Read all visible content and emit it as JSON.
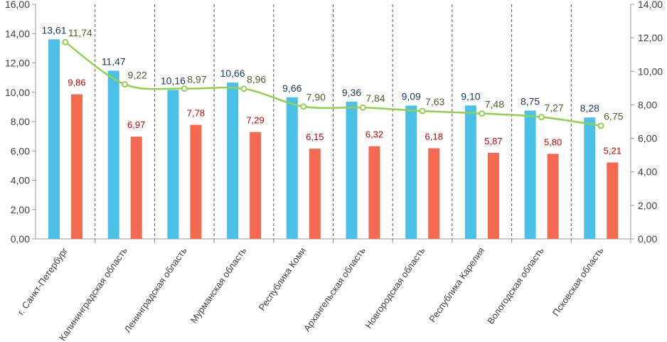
{
  "chart_data": {
    "type": "bar",
    "categories": [
      "г. Санкт-Петербург",
      "Калининградская область",
      "Ленинградская область",
      "Мурманская область",
      "Республика Коми",
      "Архангельская область",
      "Новгородская область",
      "Республика Карелия",
      "Вологодская область",
      "Псковская область"
    ],
    "series": [
      {
        "type": "bar",
        "axis": "left",
        "color": "#4BC0E8",
        "label_color": "#1F3864",
        "values": [
          13.61,
          11.47,
          10.16,
          10.66,
          9.66,
          9.36,
          9.09,
          9.1,
          8.75,
          8.28
        ],
        "labels": [
          "13,61",
          "11,47",
          "10,16",
          "10,66",
          "9,66",
          "9,36",
          "9,09",
          "9,10",
          "8,75",
          "8,28"
        ]
      },
      {
        "type": "bar",
        "axis": "left",
        "color": "#F46A50",
        "label_color": "#C00000",
        "values": [
          9.86,
          6.97,
          7.78,
          7.29,
          6.15,
          6.32,
          6.18,
          5.87,
          5.8,
          5.21
        ],
        "labels": [
          "9,86",
          "6,97",
          "7,78",
          "7,29",
          "6,15",
          "6,32",
          "6,18",
          "5,87",
          "5,80",
          "5,21"
        ]
      },
      {
        "type": "line",
        "axis": "right",
        "color": "#92D050",
        "label_color": "#4F6228",
        "values": [
          11.74,
          9.22,
          8.97,
          8.96,
          7.9,
          7.84,
          7.63,
          7.48,
          7.27,
          6.75
        ],
        "labels": [
          "11,74",
          "9,22",
          "8,97",
          "8,96",
          "7,90",
          "7,84",
          "7,63",
          "7,48",
          "7,27",
          "6,75"
        ]
      }
    ],
    "left_axis": {
      "ylim": [
        0,
        16
      ],
      "ticks": [
        "0,00",
        "2,00",
        "4,00",
        "6,00",
        "8,00",
        "10,00",
        "12,00",
        "14,00",
        "16,00"
      ]
    },
    "right_axis": {
      "ylim": [
        0,
        14
      ],
      "ticks": [
        "0,00",
        "2,00",
        "4,00",
        "6,00",
        "8,00",
        "10,00",
        "12,00",
        "14,00"
      ]
    },
    "grid": "vertical dashed category separators",
    "legend": "none"
  }
}
